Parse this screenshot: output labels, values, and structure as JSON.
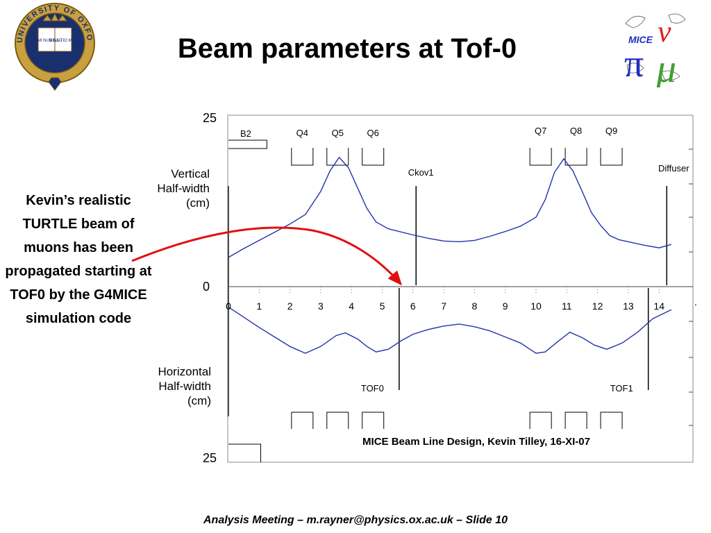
{
  "slide": {
    "title": "Beam parameters at Tof-0",
    "side_note": "Kevin’s realistic TURTLE beam of muons has been propagated starting at TOF0 by the G4MICE simulation code",
    "footer": "Analysis Meeting – m.rayner@physics.ox.ac.uk – Slide 10"
  },
  "logos": {
    "oxford_text": "UNIVERSITY OF OXFORD",
    "oxford_book_left": "DOMI NUS ILLU",
    "oxford_book_right": "MINA TIO MEA",
    "mice_text": "MICE"
  },
  "colors": {
    "curve": "#2233aa",
    "arrow": "#e01010",
    "oxford_blue": "#1a2f6e",
    "oxford_gold": "#c8a040",
    "mice_red": "#e02020",
    "mice_blue": "#2030c0",
    "mice_green": "#40a030"
  },
  "chart_data": {
    "type": "line",
    "title": "",
    "credit": "MICE Beam Line Design, Kevin Tilley, 16-XI-07",
    "xlim": [
      0,
      15
    ],
    "ylim": [
      -25,
      25
    ],
    "x_ticks": [
      "0",
      "1",
      "2",
      "3",
      "4",
      "5",
      "6",
      "7",
      "8",
      "9",
      "10",
      "11",
      "12",
      "13",
      "14"
    ],
    "y_labels": {
      "top": "25",
      "middle": "0",
      "bottom": "25"
    },
    "panel_labels": {
      "vertical": [
        "Vertical",
        "Half-width",
        "(cm)"
      ],
      "horizontal": [
        "Horizontal",
        "Half-width",
        "(cm)"
      ]
    },
    "series": [
      {
        "name": "",
        "panel": "vertical",
        "x": [
          0.0,
          0.5,
          1.0,
          1.5,
          2.0,
          2.5,
          3.0,
          3.3,
          3.6,
          3.9,
          4.2,
          4.5,
          4.8,
          5.2,
          6.0,
          6.5,
          7.0,
          7.5,
          8.0,
          8.5,
          9.0,
          9.5,
          10.0,
          10.3,
          10.6,
          10.9,
          11.2,
          11.5,
          11.8,
          12.1,
          12.4,
          12.7,
          13.0,
          13.5,
          14.0,
          14.4
        ],
        "y": [
          4.3,
          5.6,
          6.8,
          8.0,
          9.2,
          10.6,
          14.0,
          17.0,
          19.0,
          17.5,
          14.5,
          11.5,
          9.5,
          8.5,
          7.6,
          7.1,
          6.7,
          6.6,
          6.8,
          7.4,
          8.1,
          8.9,
          10.2,
          12.8,
          16.8,
          18.8,
          17.0,
          14.0,
          10.9,
          9.0,
          7.5,
          6.9,
          6.6,
          6.1,
          5.7,
          6.2
        ]
      },
      {
        "name": "",
        "panel": "horizontal",
        "x": [
          0.0,
          0.5,
          1.0,
          1.5,
          2.0,
          2.5,
          3.0,
          3.5,
          3.8,
          4.2,
          4.5,
          4.8,
          5.2,
          5.6,
          6.0,
          6.5,
          7.0,
          7.5,
          8.0,
          8.5,
          9.0,
          9.5,
          9.8,
          10.0,
          10.3,
          10.7,
          11.1,
          11.5,
          11.9,
          12.3,
          12.8,
          13.3,
          13.8,
          14.4
        ],
        "y": [
          -3.0,
          -4.5,
          -6.0,
          -7.4,
          -8.8,
          -9.8,
          -8.8,
          -7.2,
          -6.8,
          -7.7,
          -8.8,
          -9.6,
          -9.2,
          -8.0,
          -7.0,
          -6.3,
          -5.8,
          -5.5,
          -5.9,
          -6.5,
          -7.4,
          -8.3,
          -9.2,
          -9.8,
          -9.6,
          -8.1,
          -6.7,
          -7.5,
          -8.6,
          -9.2,
          -8.3,
          -6.7,
          -4.7,
          -3.4
        ]
      }
    ],
    "vertical_markers": [
      {
        "label": "Ckov1",
        "x": 6.1,
        "panel": "vertical"
      },
      {
        "label": "Diffuser",
        "x": 14.25,
        "panel": "vertical"
      },
      {
        "label": "TOF0",
        "x": 5.55,
        "panel": "horizontal"
      },
      {
        "label": "TOF1",
        "x": 13.65,
        "panel": "horizontal"
      }
    ],
    "magnets_top": [
      {
        "label": "B2",
        "x_start": 0.0,
        "x_end": 1.25
      },
      {
        "label": "Q4",
        "x_start": 2.05,
        "x_end": 2.75
      },
      {
        "label": "Q5",
        "x_start": 3.2,
        "x_end": 3.9
      },
      {
        "label": "Q6",
        "x_start": 4.35,
        "x_end": 5.05
      },
      {
        "label": "Q7",
        "x_start": 9.8,
        "x_end": 10.5
      },
      {
        "label": "Q8",
        "x_start": 10.95,
        "x_end": 11.65
      },
      {
        "label": "Q9",
        "x_start": 12.1,
        "x_end": 12.8
      }
    ],
    "magnets_bottom": [
      {
        "x_start": 0.0,
        "x_end": 1.05
      },
      {
        "x_start": 2.05,
        "x_end": 2.75
      },
      {
        "x_start": 3.2,
        "x_end": 3.9
      },
      {
        "x_start": 4.35,
        "x_end": 5.05
      },
      {
        "x_start": 9.8,
        "x_end": 10.5
      },
      {
        "x_start": 10.95,
        "x_end": 11.65
      },
      {
        "x_start": 12.1,
        "x_end": 12.8
      }
    ],
    "annotation_arrow": {
      "from": "side_note",
      "to_x": 5.6,
      "to_y": 0.4
    },
    "grid": false,
    "legend": "none"
  }
}
